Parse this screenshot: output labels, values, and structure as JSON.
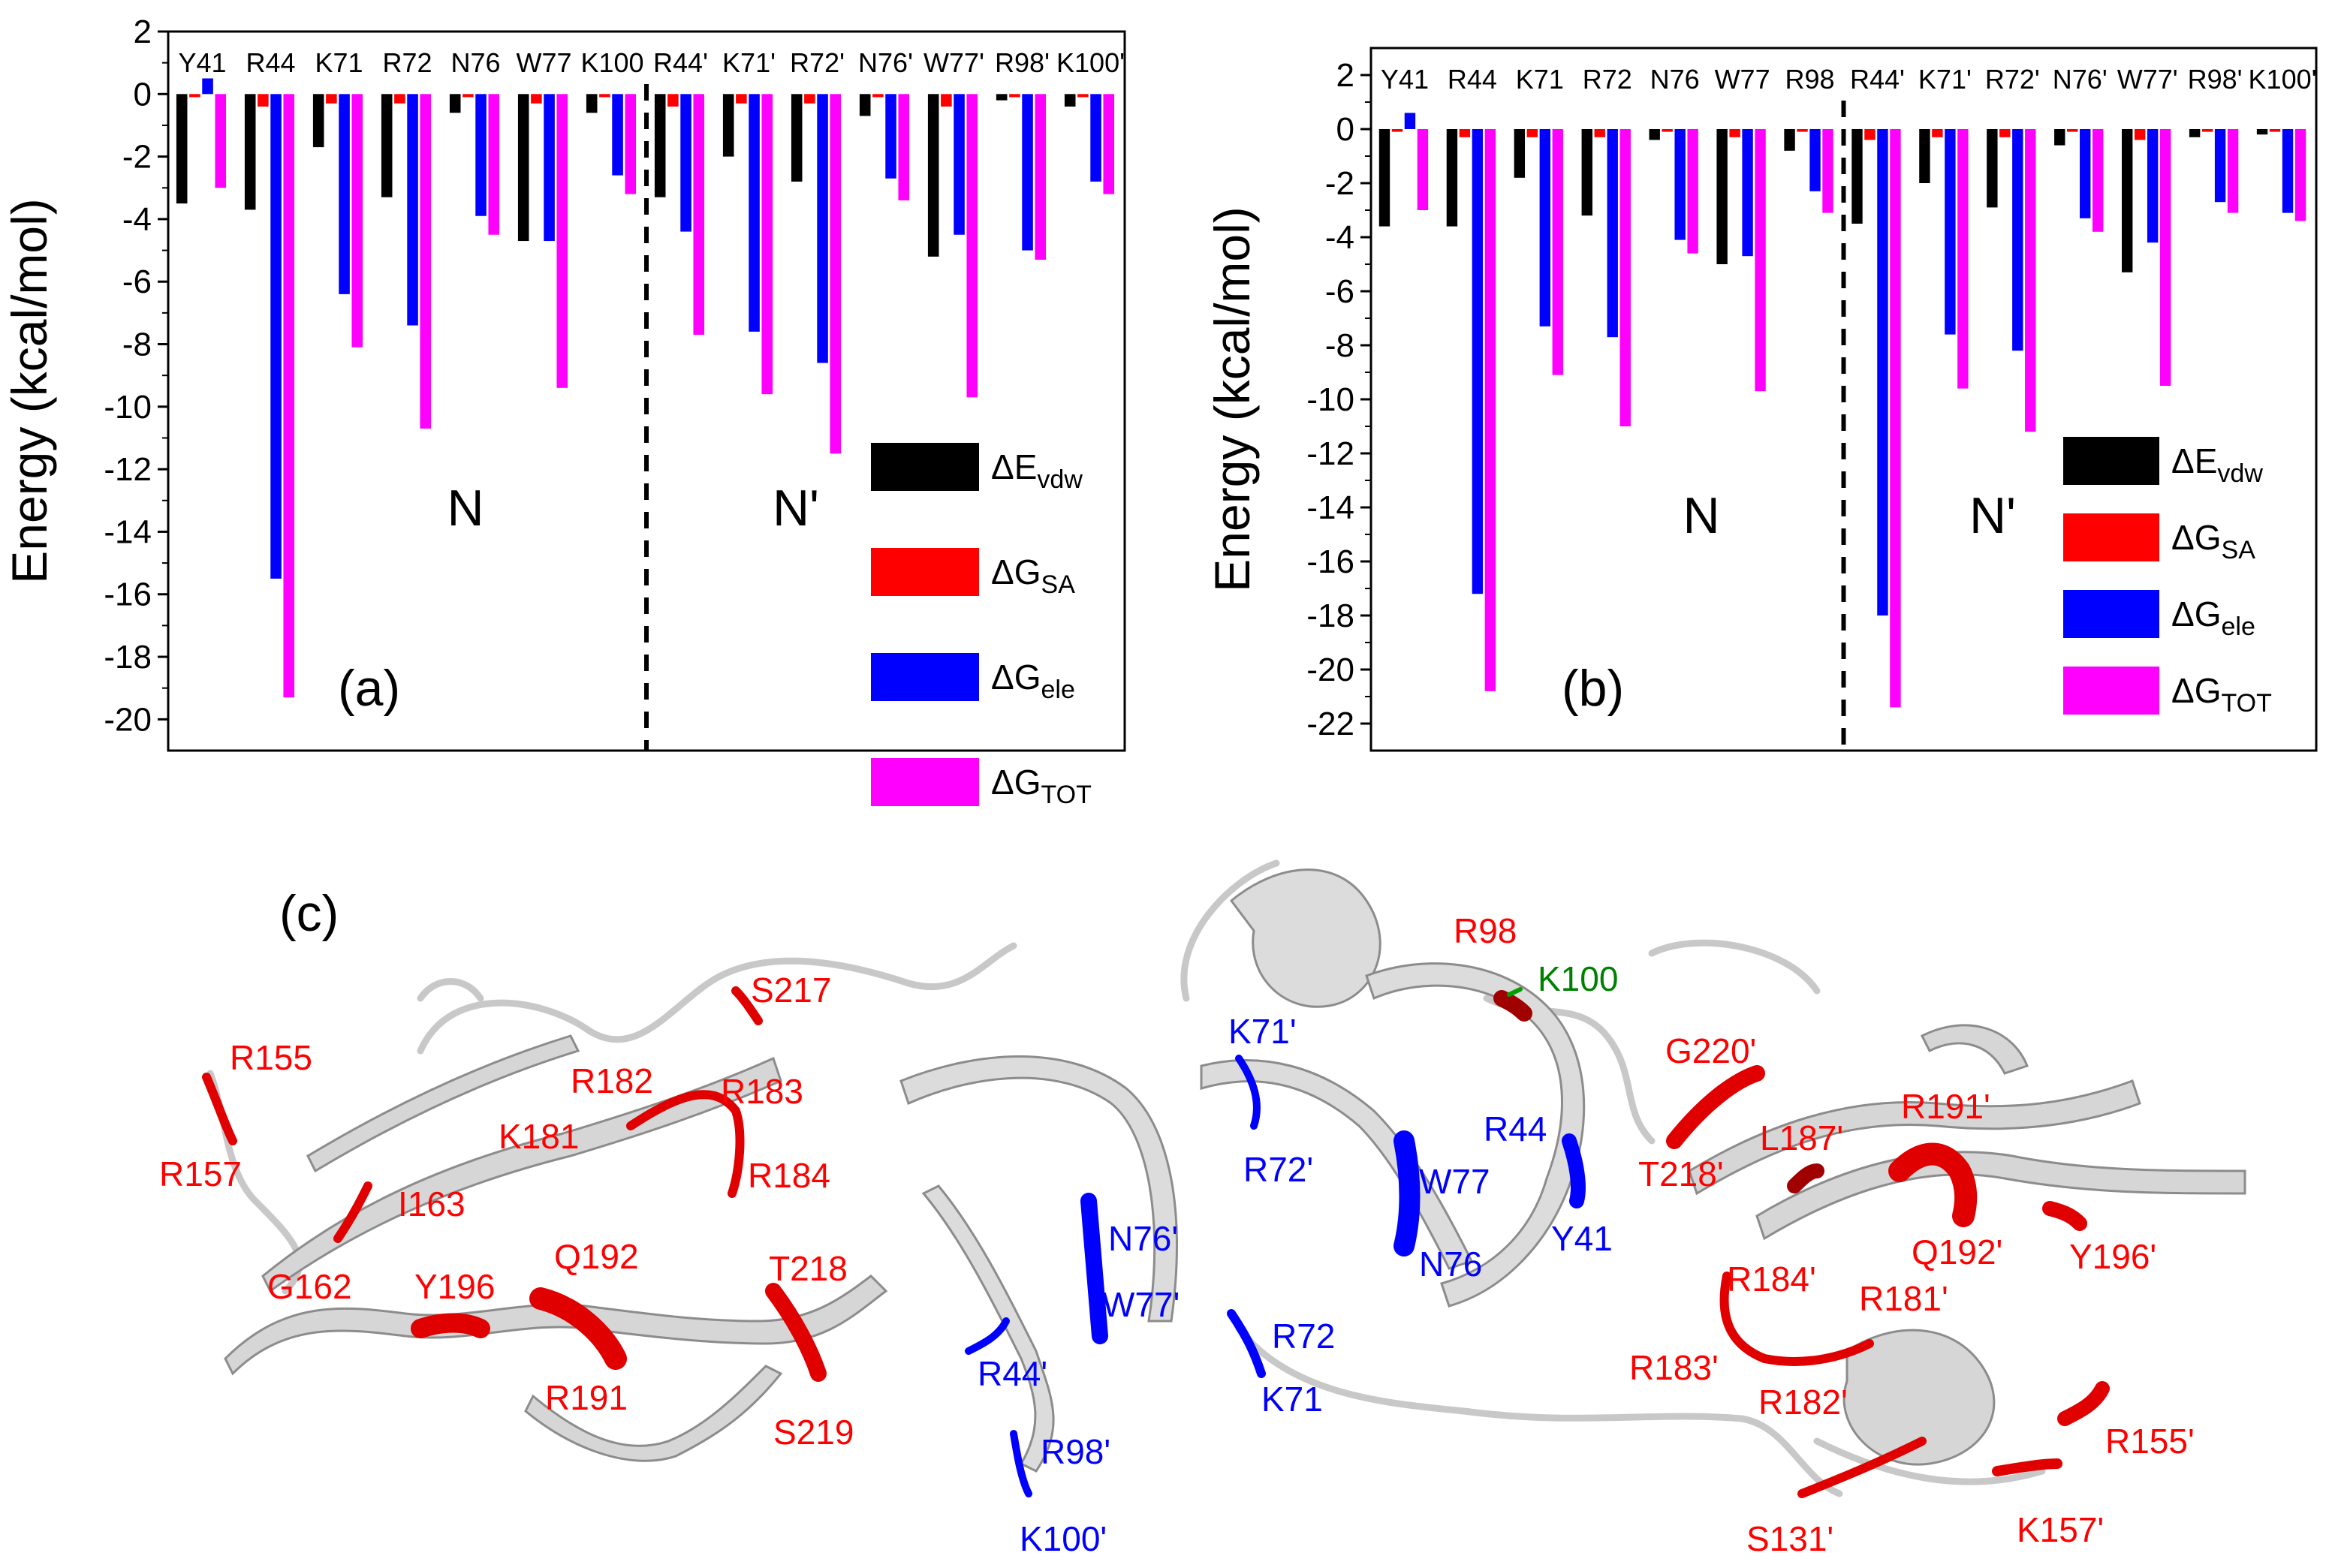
{
  "chart_data": [
    {
      "id": "a",
      "type": "bar",
      "panel_label": "(a)",
      "ylabel": "Energy (kcal/mol)",
      "ylim": [
        -21,
        2
      ],
      "yticks": [
        2,
        0,
        -2,
        -4,
        -6,
        -8,
        -10,
        -12,
        -14,
        -16,
        -18,
        -20
      ],
      "categories": [
        "Y41",
        "R44",
        "K71",
        "R72",
        "N76",
        "W77",
        "K100",
        "R44'",
        "K71'",
        "R72'",
        "N76'",
        "W77'",
        "R98'",
        "K100'"
      ],
      "divider_after_index": 6,
      "group_labels": [
        "N",
        "N'"
      ],
      "series": [
        {
          "name": "ΔEvdw",
          "color": "#000000",
          "values": [
            -3.5,
            -3.7,
            -1.7,
            -3.3,
            -0.6,
            -4.7,
            -0.6,
            -3.3,
            -2.0,
            -2.8,
            -0.7,
            -5.2,
            -0.2,
            -0.4
          ]
        },
        {
          "name": "ΔGSA",
          "color": "#ff0000",
          "values": [
            -0.1,
            -0.4,
            -0.3,
            -0.3,
            -0.1,
            -0.3,
            -0.1,
            -0.4,
            -0.3,
            -0.3,
            -0.1,
            -0.4,
            -0.1,
            -0.1
          ]
        },
        {
          "name": "ΔGele",
          "color": "#0000ff",
          "values": [
            0.5,
            -15.5,
            -6.4,
            -7.4,
            -3.9,
            -4.7,
            -2.6,
            -4.4,
            -7.6,
            -8.6,
            -2.7,
            -4.5,
            -5.0,
            -2.8
          ]
        },
        {
          "name": "ΔGTOT",
          "color": "#ff00ff",
          "values": [
            -3.0,
            -19.3,
            -8.1,
            -10.7,
            -4.5,
            -9.4,
            -3.2,
            -7.7,
            -9.6,
            -11.5,
            -3.4,
            -9.7,
            -5.3,
            -3.2
          ]
        }
      ]
    },
    {
      "id": "b",
      "type": "bar",
      "panel_label": "(b)",
      "ylabel": "Energy (kcal/mol)",
      "ylim": [
        -23,
        3
      ],
      "yticks": [
        2,
        0,
        -2,
        -4,
        -6,
        -8,
        -10,
        -12,
        -14,
        -16,
        -18,
        -20,
        -22
      ],
      "categories": [
        "Y41",
        "R44",
        "K71",
        "R72",
        "N76",
        "W77",
        "R98",
        "R44'",
        "K71'",
        "R72'",
        "N76'",
        "W77'",
        "R98'",
        "K100'"
      ],
      "divider_after_index": 6,
      "group_labels": [
        "N",
        "N'"
      ],
      "series": [
        {
          "name": "ΔEvdw",
          "color": "#000000",
          "values": [
            -3.6,
            -3.6,
            -1.8,
            -3.2,
            -0.4,
            -5.0,
            -0.8,
            -3.5,
            -2.0,
            -2.9,
            -0.6,
            -5.3,
            -0.3,
            -0.2
          ]
        },
        {
          "name": "ΔGSA",
          "color": "#ff0000",
          "values": [
            -0.1,
            -0.3,
            -0.3,
            -0.3,
            -0.1,
            -0.3,
            -0.1,
            -0.4,
            -0.3,
            -0.3,
            -0.1,
            -0.4,
            -0.1,
            -0.1
          ]
        },
        {
          "name": "ΔGele",
          "color": "#0000ff",
          "values": [
            0.6,
            -17.2,
            -7.3,
            -7.7,
            -4.1,
            -4.7,
            -2.3,
            -18.0,
            -7.6,
            -8.2,
            -3.3,
            -4.2,
            -2.7,
            -3.1
          ]
        },
        {
          "name": "ΔGTOT",
          "color": "#ff00ff",
          "values": [
            -3.0,
            -20.8,
            -9.1,
            -11.0,
            -4.6,
            -9.7,
            -3.1,
            -21.4,
            -9.6,
            -11.2,
            -3.8,
            -9.5,
            -3.1,
            -3.4
          ]
        }
      ]
    }
  ],
  "legend": [
    {
      "main": "ΔE",
      "sub": "vdw",
      "color": "#000000"
    },
    {
      "main": "ΔG",
      "sub": "SA",
      "color": "#ff0000"
    },
    {
      "main": "ΔG",
      "sub": "ele",
      "color": "#0000ff"
    },
    {
      "main": "ΔG",
      "sub": "TOT",
      "color": "#ff00ff"
    }
  ],
  "structure": {
    "panel_label": "(c)",
    "labels": [
      {
        "text": "S217",
        "color": "#ff0000"
      },
      {
        "text": "R155",
        "color": "#ff0000"
      },
      {
        "text": "R157",
        "color": "#ff0000"
      },
      {
        "text": "R182",
        "color": "#ff0000"
      },
      {
        "text": "R183",
        "color": "#ff0000"
      },
      {
        "text": "K181",
        "color": "#ff0000"
      },
      {
        "text": "R184",
        "color": "#ff0000"
      },
      {
        "text": "I163",
        "color": "#ff0000"
      },
      {
        "text": "Q192",
        "color": "#ff0000"
      },
      {
        "text": "Y196",
        "color": "#ff0000"
      },
      {
        "text": "G162",
        "color": "#ff0000"
      },
      {
        "text": "T218",
        "color": "#ff0000"
      },
      {
        "text": "R191",
        "color": "#ff0000"
      },
      {
        "text": "S219",
        "color": "#ff0000"
      },
      {
        "text": "K71'",
        "color": "#0000ff"
      },
      {
        "text": "R72'",
        "color": "#0000ff"
      },
      {
        "text": "N76'",
        "color": "#0000ff"
      },
      {
        "text": "W77'",
        "color": "#0000ff"
      },
      {
        "text": "R44'",
        "color": "#0000ff"
      },
      {
        "text": "R98'",
        "color": "#0000ff"
      },
      {
        "text": "K100'",
        "color": "#0000ff"
      },
      {
        "text": "R72",
        "color": "#0000ff"
      },
      {
        "text": "K71",
        "color": "#0000ff"
      },
      {
        "text": "R44",
        "color": "#0000ff"
      },
      {
        "text": "W77",
        "color": "#0000ff"
      },
      {
        "text": "N76",
        "color": "#0000ff"
      },
      {
        "text": "Y41",
        "color": "#0000ff"
      },
      {
        "text": "R98",
        "color": "#ff0000"
      },
      {
        "text": "K100",
        "color": "#008000"
      },
      {
        "text": "G220'",
        "color": "#ff0000"
      },
      {
        "text": "L187'",
        "color": "#ff0000"
      },
      {
        "text": "R191'",
        "color": "#ff0000"
      },
      {
        "text": "T218'",
        "color": "#ff0000"
      },
      {
        "text": "Q192'",
        "color": "#ff0000"
      },
      {
        "text": "Y196'",
        "color": "#ff0000"
      },
      {
        "text": "R184'",
        "color": "#ff0000"
      },
      {
        "text": "R181'",
        "color": "#ff0000"
      },
      {
        "text": "R183'",
        "color": "#ff0000"
      },
      {
        "text": "R182'",
        "color": "#ff0000"
      },
      {
        "text": "R155'",
        "color": "#ff0000"
      },
      {
        "text": "S131'",
        "color": "#ff0000"
      },
      {
        "text": "K157'",
        "color": "#ff0000"
      }
    ]
  }
}
